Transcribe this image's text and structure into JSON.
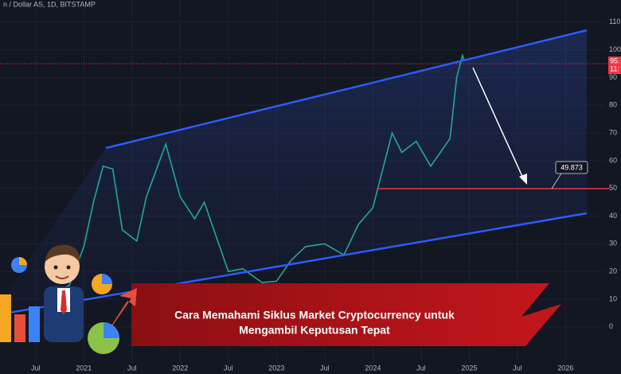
{
  "header": {
    "symbol": "n / Dollar AS, 1D, BITSTAMP"
  },
  "chart_data": {
    "type": "line",
    "color": "#26a69a",
    "x": [
      2020.6,
      2020.85,
      2021.0,
      2021.1,
      2021.2,
      2021.3,
      2021.4,
      2021.55,
      2021.65,
      2021.85,
      2022.0,
      2022.15,
      2022.25,
      2022.4,
      2022.5,
      2022.65,
      2022.85,
      2023.0,
      2023.15,
      2023.3,
      2023.5,
      2023.7,
      2023.85,
      2024.0,
      2024.2,
      2024.3,
      2024.45,
      2024.6,
      2024.7,
      2024.8,
      2024.87,
      2024.93,
      2024.95
    ],
    "values": [
      11,
      15,
      29,
      45,
      58,
      57,
      35,
      31,
      47,
      66,
      47,
      39,
      45,
      30,
      20,
      21,
      16,
      16.5,
      24,
      29,
      30,
      26,
      37,
      43,
      70,
      63,
      67,
      58,
      63,
      68,
      90,
      98,
      96
    ],
    "xlim": [
      2020.13,
      2026.41
    ],
    "xticks": [
      {
        "value": 2020.5,
        "label": "Jul"
      },
      2021,
      {
        "value": 2021.5,
        "label": "Jul"
      },
      2022,
      {
        "value": 2022.5,
        "label": "Jul"
      },
      2023,
      {
        "value": 2023.5,
        "label": "Jul"
      },
      2024,
      {
        "value": 2024.5,
        "label": "Jul"
      },
      2025,
      {
        "value": 2025.5,
        "label": "Jul"
      },
      2026
    ],
    "ylim": [
      -17,
      118
    ],
    "yticks": [
      0,
      10,
      20,
      30,
      40,
      50,
      60,
      70,
      80,
      90,
      100,
      110
    ],
    "grid": true,
    "level": 49.873,
    "last_price": 95,
    "price_label": "95.",
    "countdown_label": "11:"
  },
  "banner": {
    "lines": [
      "Cara Memahami Siklus Market Cryptocurrency untuk",
      "Mengambil Keputusan Tepat"
    ]
  }
}
